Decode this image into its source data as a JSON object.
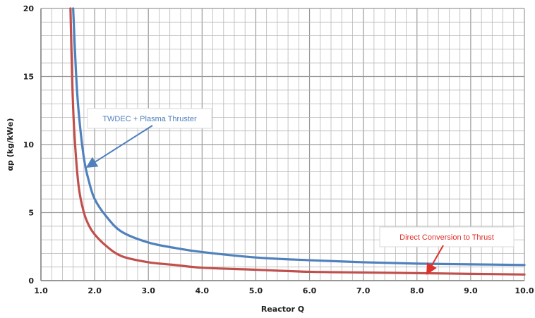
{
  "chart_data": {
    "type": "line",
    "title": "",
    "xlabel": "Reactor Q",
    "ylabel": "αp (kg/kWe)",
    "xlim": [
      1.0,
      10.0
    ],
    "ylim": [
      0,
      20
    ],
    "x_ticks": [
      "1.0",
      "2.0",
      "3.0",
      "4.0",
      "5.0",
      "6.0",
      "7.0",
      "8.0",
      "9.0",
      "10.0"
    ],
    "y_ticks": [
      "0",
      "5",
      "10",
      "15",
      "20"
    ],
    "grid": true,
    "series": [
      {
        "name": "",
        "color": "#4f81bd",
        "x": [
          1.6,
          1.65,
          1.7,
          1.8,
          1.9,
          2.0,
          2.2,
          2.5,
          3.0,
          3.5,
          4.0,
          5.0,
          6.0,
          7.0,
          8.0,
          9.0,
          10.0
        ],
        "y": [
          20,
          15.5,
          12.5,
          9.0,
          7.2,
          6.0,
          4.8,
          3.6,
          2.8,
          2.4,
          2.1,
          1.7,
          1.5,
          1.35,
          1.25,
          1.2,
          1.15
        ]
      },
      {
        "name": "",
        "color": "#c0504d",
        "x": [
          1.55,
          1.58,
          1.62,
          1.7,
          1.8,
          1.9,
          2.0,
          2.2,
          2.5,
          3.0,
          3.5,
          4.0,
          5.0,
          6.0,
          7.0,
          8.0,
          9.0,
          10.0
        ],
        "y": [
          20,
          15.0,
          11.0,
          7.0,
          5.0,
          4.0,
          3.4,
          2.6,
          1.8,
          1.35,
          1.15,
          0.95,
          0.8,
          0.65,
          0.6,
          0.55,
          0.5,
          0.45
        ]
      }
    ],
    "annotations": [
      {
        "text": "TWDEC + Plasma Thruster",
        "color": "#4f81bd",
        "target": [
          1.88,
          8.4
        ]
      },
      {
        "text": "Direct Conversion to Thrust",
        "color": "#e0302a",
        "target": [
          8.2,
          0.6
        ]
      }
    ]
  }
}
